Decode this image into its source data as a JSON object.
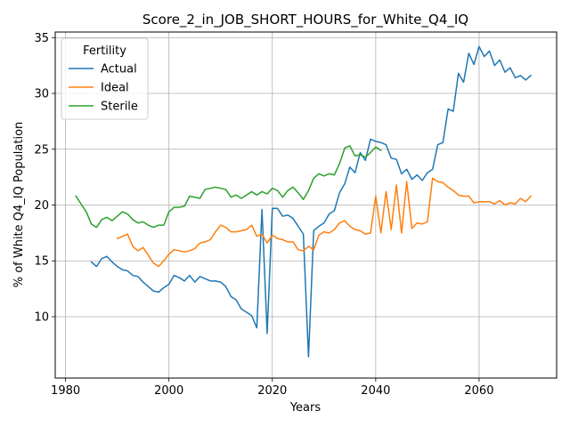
{
  "chart_data": {
    "type": "line",
    "title": "Score_2_in_JOB_SHORT_HOURS_for_White_Q4_IQ",
    "xlabel": "Years",
    "ylabel": "% of White Q4_IQ Population",
    "xlim": [
      1978,
      2075
    ],
    "ylim": [
      4.5,
      35.5
    ],
    "x_ticks": [
      1980,
      2000,
      2020,
      2040,
      2060
    ],
    "y_ticks": [
      10,
      15,
      20,
      25,
      30,
      35
    ],
    "grid": true,
    "legend": {
      "title": "Fertility",
      "placement": "top-left"
    },
    "series": [
      {
        "name": "Actual",
        "color": "#1f77b4",
        "x": [
          1985,
          1986,
          1987,
          1988,
          1989,
          1990,
          1991,
          1992,
          1993,
          1994,
          1995,
          1996,
          1997,
          1998,
          1999,
          2000,
          2001,
          2002,
          2003,
          2004,
          2005,
          2006,
          2007,
          2008,
          2009,
          2010,
          2011,
          2012,
          2013,
          2014,
          2015,
          2016,
          2017,
          2018,
          2019,
          2020,
          2021,
          2022,
          2023,
          2024,
          2025,
          2026,
          2027,
          2028,
          2029,
          2030,
          2031,
          2032,
          2033,
          2034,
          2035,
          2036,
          2037,
          2038,
          2039,
          2040,
          2041,
          2042,
          2043,
          2044,
          2045,
          2046,
          2047,
          2048,
          2049,
          2050,
          2051,
          2052,
          2053,
          2054,
          2055,
          2056,
          2057,
          2058,
          2059,
          2060,
          2061,
          2062,
          2063,
          2064,
          2065,
          2066,
          2067,
          2068,
          2069,
          2070
        ],
        "values": [
          14.9,
          14.5,
          15.2,
          15.4,
          14.9,
          14.5,
          14.2,
          14.1,
          13.7,
          13.6,
          13.1,
          12.7,
          12.3,
          12.2,
          12.6,
          12.9,
          13.7,
          13.5,
          13.2,
          13.7,
          13.1,
          13.6,
          13.4,
          13.2,
          13.2,
          13.1,
          12.7,
          11.8,
          11.5,
          10.7,
          10.4,
          10.1,
          9.0,
          19.6,
          8.5,
          19.7,
          19.7,
          19.0,
          19.1,
          18.8,
          18.1,
          17.4,
          6.4,
          17.7,
          18.1,
          18.4,
          19.2,
          19.5,
          21.1,
          21.9,
          23.4,
          22.9,
          24.7,
          24.0,
          25.9,
          25.7,
          25.6,
          25.4,
          24.2,
          24.1,
          22.8,
          23.2,
          22.3,
          22.7,
          22.2,
          22.9,
          23.2,
          25.4,
          25.6,
          28.6,
          28.4,
          31.8,
          31.0,
          33.6,
          32.6,
          34.2,
          33.3,
          33.8,
          32.5,
          33.0,
          31.9,
          32.3,
          31.4,
          31.6,
          31.2,
          31.6
        ]
      },
      {
        "name": "Ideal",
        "color": "#ff7f0e",
        "x": [
          1990,
          1991,
          1992,
          1993,
          1994,
          1995,
          1996,
          1997,
          1998,
          1999,
          2000,
          2001,
          2002,
          2003,
          2004,
          2005,
          2006,
          2007,
          2008,
          2009,
          2010,
          2011,
          2012,
          2013,
          2014,
          2015,
          2016,
          2017,
          2018,
          2019,
          2020,
          2021,
          2022,
          2023,
          2024,
          2025,
          2026,
          2027,
          2028,
          2029,
          2030,
          2031,
          2032,
          2033,
          2034,
          2035,
          2036,
          2037,
          2038,
          2039,
          2040,
          2041,
          2042,
          2043,
          2044,
          2045,
          2046,
          2047,
          2048,
          2049,
          2050,
          2051,
          2052,
          2053,
          2054,
          2055,
          2056,
          2057,
          2058,
          2059,
          2060,
          2061,
          2062,
          2063,
          2064,
          2065,
          2066,
          2067,
          2068,
          2069,
          2070
        ],
        "values": [
          17.0,
          17.2,
          17.4,
          16.3,
          15.9,
          16.2,
          15.5,
          14.8,
          14.5,
          15.0,
          15.6,
          16.0,
          15.9,
          15.8,
          15.9,
          16.1,
          16.6,
          16.7,
          16.9,
          17.6,
          18.2,
          18.0,
          17.6,
          17.6,
          17.7,
          17.8,
          18.2,
          17.2,
          17.4,
          16.6,
          17.3,
          17.0,
          16.9,
          16.7,
          16.7,
          16.0,
          15.9,
          16.3,
          16.0,
          17.3,
          17.6,
          17.5,
          17.8,
          18.4,
          18.6,
          18.1,
          17.8,
          17.7,
          17.4,
          17.5,
          20.8,
          17.5,
          21.2,
          17.8,
          21.8,
          17.5,
          22.1,
          17.9,
          18.4,
          18.3,
          18.5,
          22.4,
          22.1,
          22.0,
          21.6,
          21.3,
          20.9,
          20.8,
          20.8,
          20.2,
          20.3,
          20.3,
          20.3,
          20.1,
          20.4,
          20.0,
          20.2,
          20.1,
          20.6,
          20.3,
          20.8
        ]
      },
      {
        "name": "Sterile",
        "color": "#2ca02c",
        "x": [
          1982,
          1983,
          1984,
          1985,
          1986,
          1987,
          1988,
          1989,
          1990,
          1991,
          1992,
          1993,
          1994,
          1995,
          1996,
          1997,
          1998,
          1999,
          2000,
          2001,
          2002,
          2003,
          2004,
          2005,
          2006,
          2007,
          2008,
          2009,
          2010,
          2011,
          2012,
          2013,
          2014,
          2015,
          2016,
          2017,
          2018,
          2019,
          2020,
          2021,
          2022,
          2023,
          2024,
          2025,
          2026,
          2027,
          2028,
          2029,
          2030,
          2031,
          2032,
          2033,
          2034,
          2035,
          2036,
          2037,
          2038,
          2039,
          2040,
          2041
        ],
        "values": [
          20.8,
          20.1,
          19.4,
          18.3,
          18.0,
          18.7,
          18.9,
          18.6,
          19.0,
          19.4,
          19.2,
          18.7,
          18.4,
          18.5,
          18.2,
          18.0,
          18.2,
          18.2,
          19.4,
          19.8,
          19.8,
          19.9,
          20.8,
          20.7,
          20.6,
          21.4,
          21.5,
          21.6,
          21.5,
          21.4,
          20.7,
          20.9,
          20.6,
          20.9,
          21.2,
          20.9,
          21.2,
          21.0,
          21.5,
          21.3,
          20.7,
          21.3,
          21.6,
          21.1,
          20.5,
          21.3,
          22.4,
          22.8,
          22.6,
          22.8,
          22.7,
          23.7,
          25.1,
          25.3,
          24.4,
          24.5,
          24.3,
          24.7,
          25.2,
          24.9
        ]
      }
    ]
  }
}
